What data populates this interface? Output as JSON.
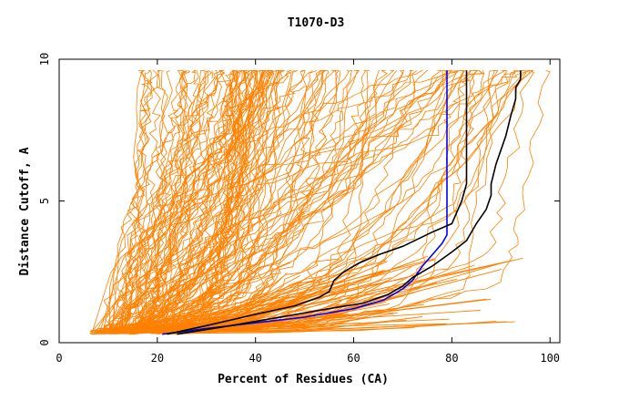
{
  "chart_data": {
    "type": "line",
    "title": "T1070-D3",
    "xlabel": "Percent of Residues (CA)",
    "ylabel": "Distance Cutoff, A",
    "xlim": [
      0,
      102
    ],
    "ylim": [
      0,
      10
    ],
    "x_ticks": [
      0,
      20,
      40,
      60,
      80,
      100
    ],
    "y_ticks": [
      0,
      5,
      10
    ],
    "grid": false,
    "legend": "none",
    "colors": {
      "background": "#ffffff",
      "axes": "#000000",
      "bundle": "#ff8000",
      "highlight_black": "#000000",
      "highlight_blue": "#0000ff"
    },
    "bundle_count": 150,
    "series": [
      {
        "color": "#0000ff",
        "points": [
          [
            21,
            0.3
          ],
          [
            30,
            0.5
          ],
          [
            40,
            0.7
          ],
          [
            50,
            0.9
          ],
          [
            60,
            1.2
          ],
          [
            66,
            1.5
          ],
          [
            70,
            1.9
          ],
          [
            72,
            2.2
          ],
          [
            74,
            2.7
          ],
          [
            76,
            3.1
          ],
          [
            78,
            3.5
          ],
          [
            79,
            3.8
          ],
          [
            79,
            5
          ],
          [
            79,
            7
          ],
          [
            79,
            9.6
          ]
        ]
      },
      {
        "color": "#000000",
        "points": [
          [
            22,
            0.3
          ],
          [
            30,
            0.6
          ],
          [
            40,
            1.0
          ],
          [
            48,
            1.3
          ],
          [
            53,
            1.6
          ],
          [
            55,
            1.8
          ],
          [
            56,
            2.2
          ],
          [
            58,
            2.5
          ],
          [
            61,
            2.8
          ],
          [
            65,
            3.1
          ],
          [
            70,
            3.4
          ],
          [
            76,
            3.9
          ],
          [
            80,
            4.2
          ],
          [
            82,
            5.0
          ],
          [
            83,
            5.6
          ],
          [
            83,
            7
          ],
          [
            83,
            9.6
          ]
        ]
      },
      {
        "color": "#000000",
        "points": [
          [
            24,
            0.3
          ],
          [
            35,
            0.6
          ],
          [
            45,
            0.9
          ],
          [
            55,
            1.2
          ],
          [
            62,
            1.4
          ],
          [
            67,
            1.7
          ],
          [
            70,
            2.0
          ],
          [
            72,
            2.3
          ],
          [
            76,
            2.7
          ],
          [
            80,
            3.2
          ],
          [
            83,
            3.6
          ],
          [
            85,
            4.2
          ],
          [
            87,
            4.7
          ],
          [
            88,
            5.2
          ],
          [
            88,
            5.6
          ],
          [
            89,
            6.3
          ],
          [
            91,
            7.3
          ],
          [
            92,
            8.0
          ],
          [
            93,
            8.6
          ],
          [
            93,
            9.0
          ],
          [
            94,
            9.3
          ],
          [
            94,
            9.6
          ]
        ]
      }
    ]
  }
}
